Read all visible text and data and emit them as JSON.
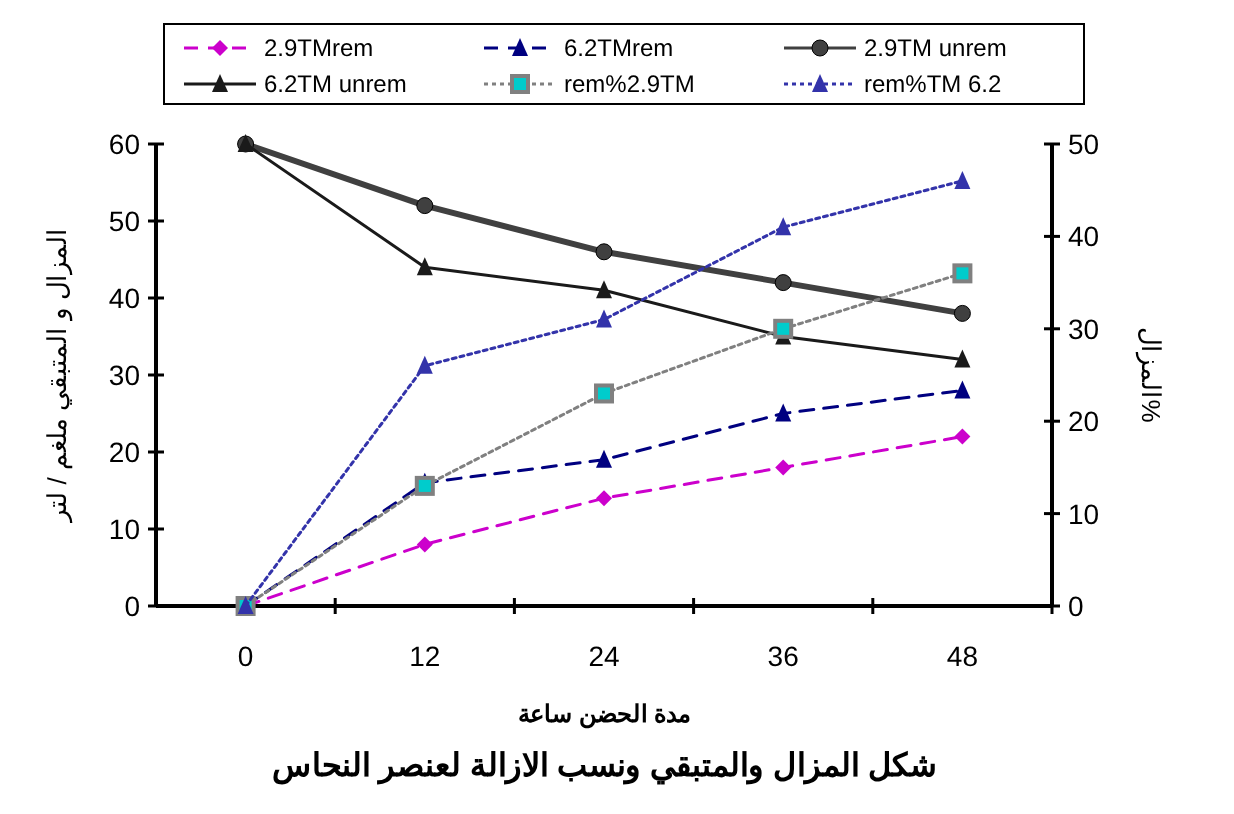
{
  "chart_data": {
    "type": "line",
    "title": "شكل المزال والمتبقي ونسب الازالة لعنصر النحاس",
    "xlabel": "مدة الحضن ساعة",
    "ylabel": "المزال و المتبقي ملغم / لتر",
    "y2label": "المزال%",
    "categories": [
      "0",
      "12",
      "24",
      "36",
      "48"
    ],
    "ylim": [
      0,
      60
    ],
    "yticks": [
      0,
      10,
      20,
      30,
      40,
      50,
      60
    ],
    "y2lim": [
      0,
      50
    ],
    "y2ticks": [
      0,
      10,
      20,
      30,
      40,
      50
    ],
    "legend": "top",
    "grid": false,
    "series": [
      {
        "name": "2.9TMrem",
        "color": "#cc00cc",
        "marker": "diamond",
        "line_style": "dashed",
        "values": [
          0,
          8,
          14,
          18,
          22
        ]
      },
      {
        "name": "6.2TMrem",
        "color": "#000080",
        "marker": "triangle",
        "line_style": "dashed",
        "values": [
          0,
          16,
          19,
          25,
          28
        ]
      },
      {
        "name": "2.9TM unrem",
        "color": "#404040",
        "marker": "circle",
        "line_style": "solid",
        "values": [
          60,
          52,
          46,
          42,
          38
        ]
      },
      {
        "name": "6.2TM unrem",
        "color": "#1a1a1a",
        "marker": "triangle",
        "line_style": "solid",
        "values": [
          60,
          44,
          41,
          35,
          32
        ]
      },
      {
        "name": "rem%2.9TM",
        "color": "#808080",
        "marker": "square",
        "line_style": "dotted",
        "axis": "y2",
        "values": [
          0,
          13,
          23,
          30,
          36
        ]
      },
      {
        "name": "rem%TM 6.2",
        "color": "#3333aa",
        "marker": "triangle",
        "line_style": "dotted",
        "axis": "y2",
        "values": [
          0,
          26,
          31,
          41,
          46
        ]
      }
    ]
  }
}
